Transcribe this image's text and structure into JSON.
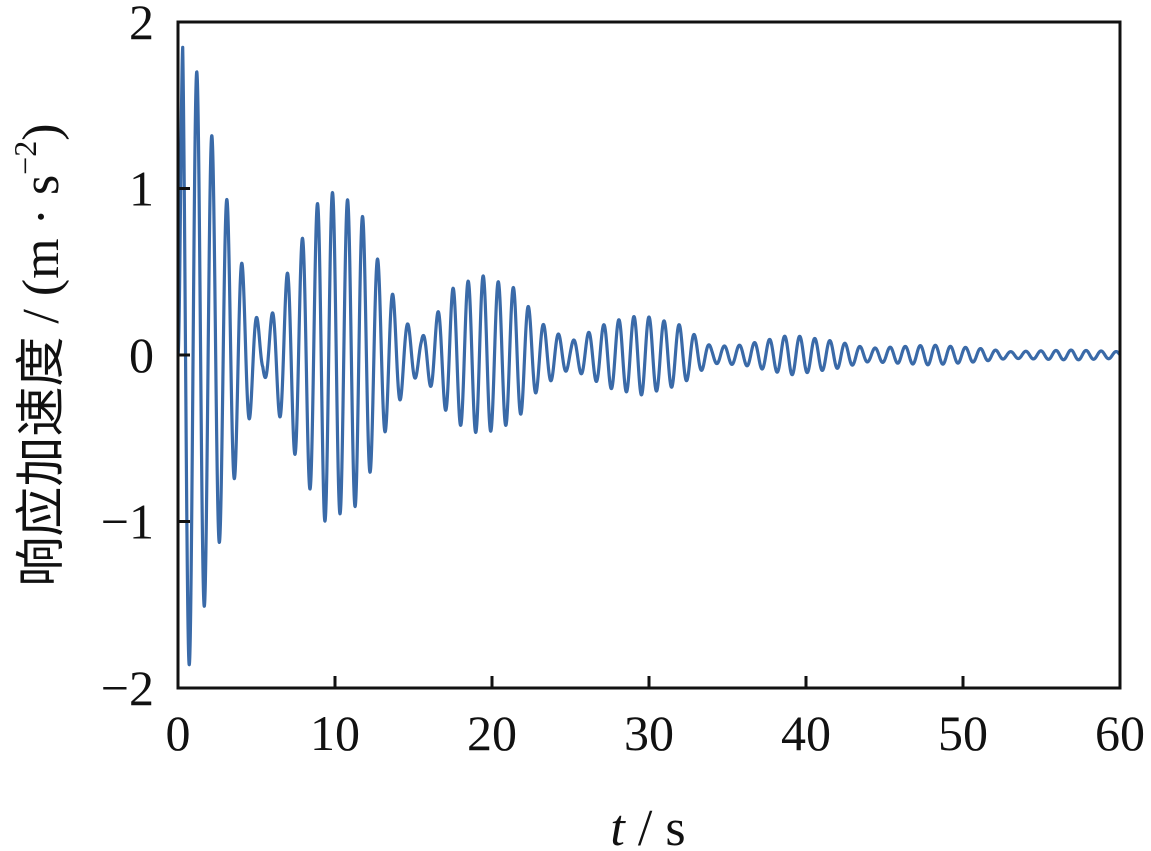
{
  "chart_data": {
    "type": "line",
    "xlabel_var": "t",
    "xlabel_unit": " / s",
    "ylabel_cn": "响应加速度",
    "ylabel_unit_pre": " / (m · s",
    "ylabel_unit_exp": "−2",
    "ylabel_unit_post": ")",
    "xlim": [
      0,
      60
    ],
    "ylim": [
      -2,
      2
    ],
    "xticks": [
      0,
      10,
      20,
      30,
      40,
      50,
      60
    ],
    "yticks": [
      -2,
      -1,
      0,
      1,
      2
    ],
    "xtick_labels": [
      "0",
      "10",
      "20",
      "30",
      "40",
      "50",
      "60"
    ],
    "ytick_labels": [
      "−2",
      "−1",
      "0",
      "1",
      "2"
    ],
    "grid": false,
    "series": [
      {
        "color": "#3a6aa8",
        "signal": {
          "carrier_period_s": 0.96,
          "envelope_points": [
            [
              0,
              0
            ],
            [
              0.3,
              2.0
            ],
            [
              1.2,
              1.7
            ],
            [
              2.2,
              1.3
            ],
            [
              3.2,
              0.9
            ],
            [
              4.2,
              0.5
            ],
            [
              5.4,
              0.1
            ],
            [
              7.0,
              0.5
            ],
            [
              9.3,
              1.0
            ],
            [
              11.5,
              0.9
            ],
            [
              13.0,
              0.5
            ],
            [
              14.5,
              0.2
            ],
            [
              15.5,
              0.1
            ],
            [
              17.5,
              0.4
            ],
            [
              19.3,
              0.48
            ],
            [
              21.5,
              0.4
            ],
            [
              23.0,
              0.2
            ],
            [
              25.0,
              0.08
            ],
            [
              27.5,
              0.2
            ],
            [
              29.5,
              0.24
            ],
            [
              32.0,
              0.18
            ],
            [
              34.0,
              0.05
            ],
            [
              36.0,
              0.06
            ],
            [
              39.0,
              0.12
            ],
            [
              42.0,
              0.08
            ],
            [
              44.0,
              0.04
            ],
            [
              48.0,
              0.06
            ],
            [
              51.0,
              0.04
            ],
            [
              53.0,
              0.02
            ],
            [
              57.0,
              0.03
            ],
            [
              60.0,
              0.02
            ]
          ]
        }
      }
    ]
  }
}
